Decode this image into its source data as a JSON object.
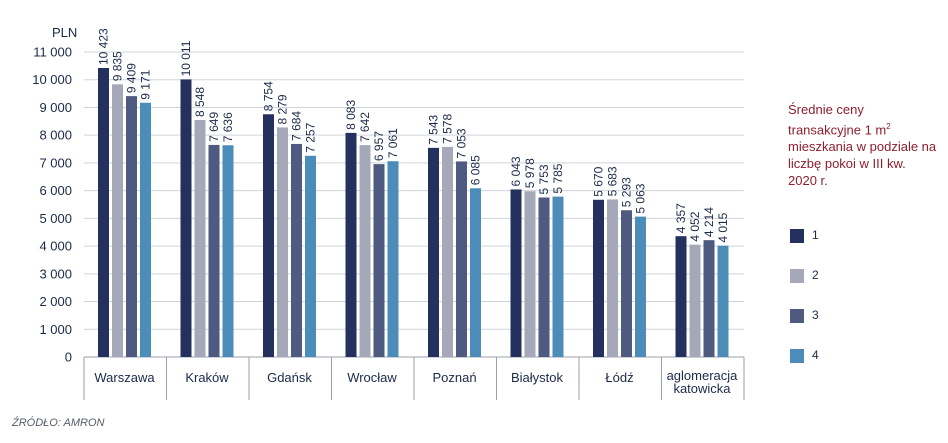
{
  "chart_data": {
    "type": "bar",
    "unit_label": "PLN",
    "title_parts": [
      "Średnie ceny transakcyjne 1 m",
      "2",
      " mieszkania w podziale na liczbę pokoi w III kw. 2020 r."
    ],
    "categories": [
      "Warszawa",
      "Kraków",
      "Gdańsk",
      "Wrocław",
      "Poznań",
      "Białystok",
      "Łódź",
      "aglomeracja katowicka"
    ],
    "series": [
      {
        "name": "1",
        "color": "#24305e",
        "values": [
          10423,
          10011,
          8754,
          8083,
          7543,
          6043,
          5670,
          4357
        ]
      },
      {
        "name": "2",
        "color": "#a5a8b8",
        "values": [
          9835,
          8548,
          8279,
          7642,
          7578,
          5978,
          5683,
          4052
        ]
      },
      {
        "name": "3",
        "color": "#4e5a80",
        "values": [
          9409,
          7649,
          7684,
          6957,
          7053,
          5753,
          5293,
          4214
        ]
      },
      {
        "name": "4",
        "color": "#4b8db8",
        "values": [
          9171,
          7636,
          7257,
          7061,
          6085,
          5785,
          5063,
          4015
        ]
      }
    ],
    "y_ticks": [
      "0",
      "1 000",
      "2 000",
      "3 000",
      "4 000",
      "5 000",
      "6 000",
      "7 000",
      "8 000",
      "9 000",
      "10 000",
      "11 000"
    ],
    "ylim": [
      0,
      11000
    ],
    "grid": true,
    "legend_position": "right"
  },
  "source": "ŹRÓDŁO: AMRON"
}
